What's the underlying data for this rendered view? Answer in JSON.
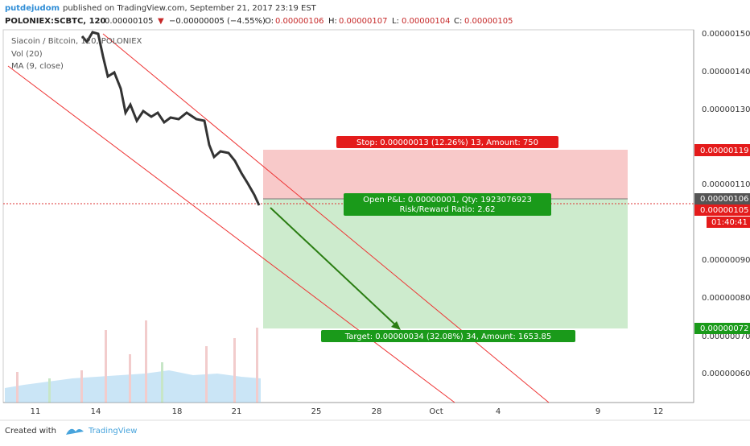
{
  "header": {
    "author": "putdejudom",
    "published": "published on TradingView.com, September 21, 2017 23:19 EST",
    "symbol": "POLONIEX:SCBTC, 120",
    "last": "0.00000105",
    "arrow": "▼",
    "change": "−0.00000005 (−4.55%)",
    "open_label": "O:",
    "open": "0.00000106",
    "high_label": "H:",
    "high": "0.00000107",
    "low_label": "L:",
    "low": "0.00000104",
    "close_label": "C:",
    "close": "0.00000105"
  },
  "legend": [
    "Siacoin / Bitcoin, 120, POLONIEX",
    "Vol (20)",
    "MA (9, close)"
  ],
  "price_axis": [
    "0.00000150",
    "0.00000140",
    "0.00000130",
    "0.00000110",
    "0.00000090",
    "0.00000080",
    "0.00000070",
    "0.00000060"
  ],
  "price_badges": {
    "stop": "0.00000119",
    "open": "0.00000106",
    "last": "0.00000105",
    "timer": "01:40:41",
    "target": "0.00000072"
  },
  "date_axis": [
    "11",
    "14",
    "18",
    "21",
    "25",
    "28",
    "Oct",
    "4",
    "9",
    "12"
  ],
  "position": {
    "stop": "Stop: 0.00000013 (12.26%) 13, Amount: 750",
    "pnl": "Open P&L: 0.00000001, Qty: 1923076923",
    "ratio": "Risk/Reward Ratio: 2.62",
    "target": "Target: 0.00000034 (32.08%) 34, Amount: 1653.85"
  },
  "footer": {
    "created": "Created with",
    "brand": "TradingView"
  }
}
